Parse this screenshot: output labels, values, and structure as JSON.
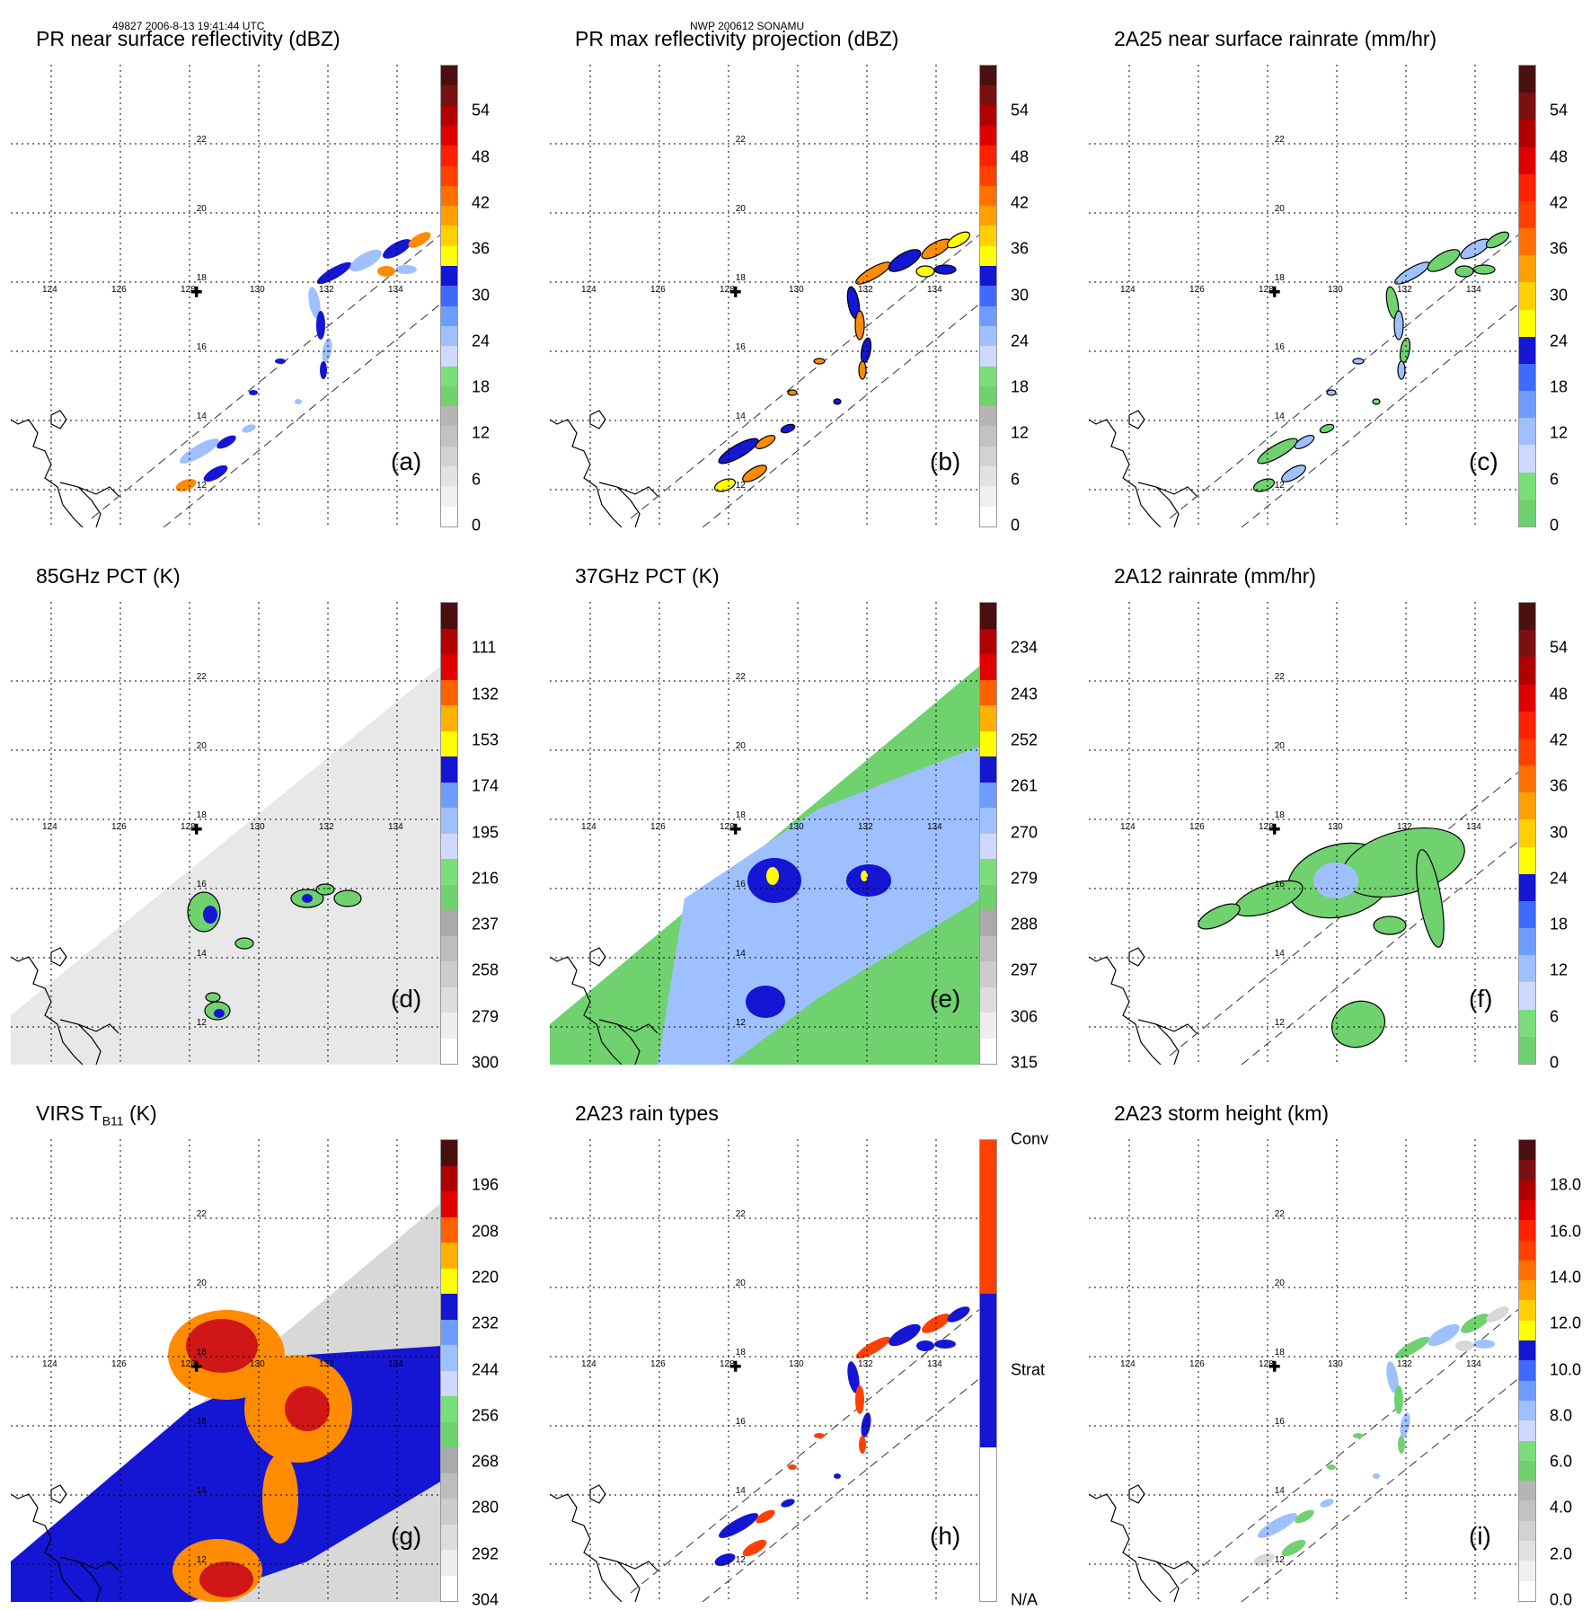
{
  "header": {
    "left": "49827 2006-8-13 19:41:44 UTC",
    "center": "NWP 200612 SONAMU"
  },
  "map": {
    "lon_labels": [
      "124",
      "126",
      "128",
      "130",
      "132",
      "134"
    ],
    "lat_labels": [
      "12",
      "14",
      "16",
      "18",
      "20",
      "22"
    ],
    "storm_center_marker": "plus-icon"
  },
  "colors": {
    "green": "#6fd26f",
    "blue": "#1515d4",
    "light_blue": "#9fc0ff",
    "red": "#d01616",
    "orange": "#ff8c00",
    "yellow": "#ffff00",
    "gray": "#d8d8d8"
  },
  "chart_data": [
    {
      "type": "heatmap",
      "id": "a",
      "title": "PR near surface reflectivity (dBZ)",
      "label": "(a)",
      "colorbar_ticks": [
        "0",
        "6",
        "12",
        "18",
        "24",
        "30",
        "36",
        "42",
        "48",
        "54"
      ],
      "colorbar_range": [
        0,
        60
      ]
    },
    {
      "type": "heatmap",
      "id": "b",
      "title": "PR max reflectivity projection (dBZ)",
      "label": "(b)",
      "colorbar_ticks": [
        "0",
        "6",
        "12",
        "18",
        "24",
        "30",
        "36",
        "42",
        "48",
        "54"
      ],
      "colorbar_range": [
        0,
        60
      ]
    },
    {
      "type": "heatmap",
      "id": "c",
      "title": "2A25 near surface rainrate (mm/hr)",
      "label": "(c)",
      "colorbar_ticks": [
        "0",
        "6",
        "12",
        "18",
        "24",
        "30",
        "36",
        "42",
        "48",
        "54"
      ],
      "colorbar_range": [
        0,
        60
      ]
    },
    {
      "type": "heatmap",
      "id": "d",
      "title": "85GHz PCT (K)",
      "label": "(d)",
      "colorbar_ticks": [
        "300",
        "279",
        "258",
        "237",
        "216",
        "195",
        "174",
        "153",
        "132",
        "111"
      ],
      "colorbar_range": [
        300,
        90
      ]
    },
    {
      "type": "heatmap",
      "id": "e",
      "title": "37GHz PCT (K)",
      "label": "(e)",
      "colorbar_ticks": [
        "315",
        "306",
        "297",
        "288",
        "279",
        "270",
        "261",
        "252",
        "243",
        "234"
      ],
      "colorbar_range": [
        315,
        225
      ]
    },
    {
      "type": "heatmap",
      "id": "f",
      "title": "2A12 rainrate (mm/hr)",
      "label": "(f)",
      "colorbar_ticks": [
        "0",
        "6",
        "12",
        "18",
        "24",
        "30",
        "36",
        "42",
        "48",
        "54"
      ],
      "colorbar_range": [
        0,
        60
      ]
    },
    {
      "type": "heatmap",
      "id": "g",
      "title_main": "VIRS T",
      "title_sub": "B11",
      "title_unit": " (K)",
      "label": "(g)",
      "colorbar_ticks": [
        "304",
        "292",
        "280",
        "268",
        "256",
        "244",
        "232",
        "220",
        "208",
        "196"
      ],
      "colorbar_range": [
        304,
        184
      ]
    },
    {
      "type": "heatmap",
      "id": "h",
      "title": "2A23 rain types",
      "label": "(h)",
      "colorbar_ticks": [
        "N/A",
        "Strat",
        "Conv"
      ],
      "colorbar_range": [
        0,
        3
      ]
    },
    {
      "type": "heatmap",
      "id": "i",
      "title": "2A23 storm height (km)",
      "label": "(i)",
      "colorbar_ticks": [
        "0.0",
        "2.0",
        "4.0",
        "6.0",
        "8.0",
        "10.0",
        "12.0",
        "14.0",
        "16.0",
        "18.0"
      ],
      "colorbar_range": [
        0,
        20
      ]
    }
  ]
}
